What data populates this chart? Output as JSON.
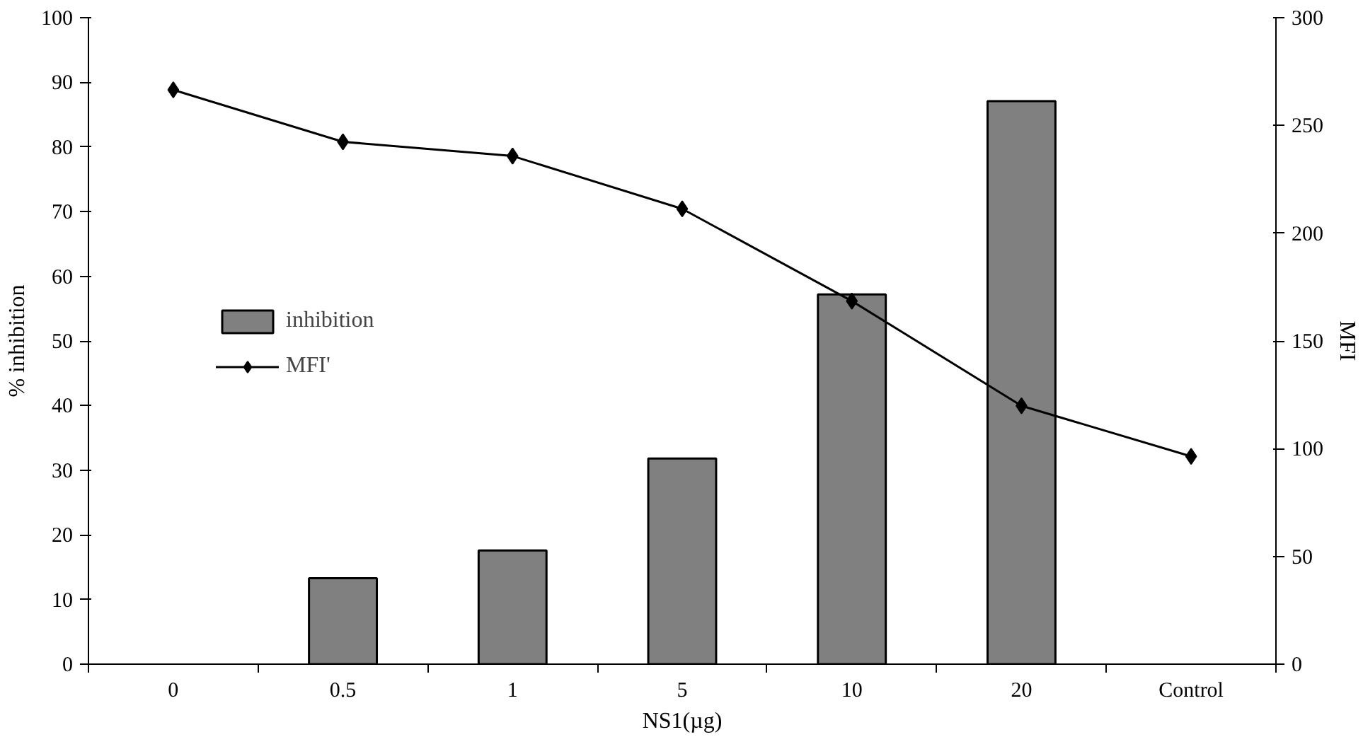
{
  "chart_data": {
    "type": "bar",
    "categories": [
      "0",
      "0.5",
      "1",
      "5",
      "10",
      "20",
      "Control"
    ],
    "xlabel": "NS1(µg)",
    "ylabel": "% inhibition",
    "y2label": "MFI",
    "series": [
      {
        "name": "inhibition",
        "color": "#808080",
        "values": [
          null,
          13.3,
          17.6,
          31.8,
          57.2,
          87.1,
          null
        ]
      },
      {
        "name": "MFI'",
        "type": "line",
        "axis": "y2",
        "color": "#000000",
        "marker": "diamond",
        "values": [
          266.5,
          242.4,
          235.8,
          211.3,
          168.5,
          119.9,
          96.4
        ]
      }
    ],
    "ylim": [
      0,
      100
    ],
    "yticks": [
      0,
      10,
      20,
      30,
      40,
      50,
      60,
      70,
      80,
      90,
      100
    ],
    "y2lim": [
      0,
      300
    ],
    "y2ticks": [
      0,
      50,
      100,
      150,
      200,
      250,
      300
    ],
    "legend": "left",
    "grid": false
  }
}
